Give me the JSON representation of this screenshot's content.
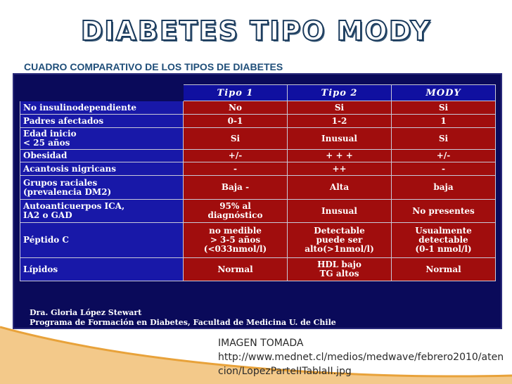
{
  "title": "DIABETES TIPO MODY",
  "subtitle": "CUADRO COMPARATIVO DE LOS TIPOS DE DIABETES",
  "table": {
    "headers": [
      "Tipo 1",
      "Tipo 2",
      "MODY"
    ],
    "rows": [
      {
        "label": "No insulinodependiente",
        "values": [
          "No",
          "Si",
          "Si"
        ]
      },
      {
        "label": "Padres afectados",
        "values": [
          "0-1",
          "1-2",
          "1"
        ]
      },
      {
        "label": "Edad inicio\n< 25 años",
        "values": [
          "Si",
          "Inusual",
          "Si"
        ]
      },
      {
        "label": "Obesidad",
        "values": [
          "+/-",
          "+ + +",
          "+/-"
        ]
      },
      {
        "label": "Acantosis nigricans",
        "values": [
          "-",
          "++",
          "-"
        ]
      },
      {
        "label": "Grupos raciales\n(prevalencia DM2)",
        "values": [
          "Baja -",
          "Alta",
          "baja"
        ]
      },
      {
        "label": "Autoanticuerpos ICA,\nIA2    o GAD",
        "values": [
          "95% al\ndiagnóstico",
          "Inusual",
          "No presentes"
        ]
      },
      {
        "label": "Péptido C",
        "values": [
          "no medible\n> 3-5 años\n(<033nmol/l)",
          "Detectable\npuede ser\nalto(>1nmol/l)",
          "Usualmente\ndetectable\n(0-1 nmol/l)"
        ]
      },
      {
        "label": "Lípidos",
        "values": [
          "Normal",
          "HDL bajo\nTG altos",
          "Normal"
        ]
      }
    ],
    "credit_line1": "Dra. Gloria López Stewart",
    "credit_line2": "Programa de Formación en Diabetes, Facultad de Medicina U. de Chile"
  },
  "source_label": "IMAGEN TOMADA",
  "source_url": "http://www.mednet.cl/medios/medwave/febrero2010/atencion/LopezParteIITablaII.jpg",
  "colors": {
    "header_blue": "#1010a0",
    "value_red": "#a00d0d",
    "frame_navy": "#0a0a5a",
    "accent_orange": "#e8a23a"
  }
}
